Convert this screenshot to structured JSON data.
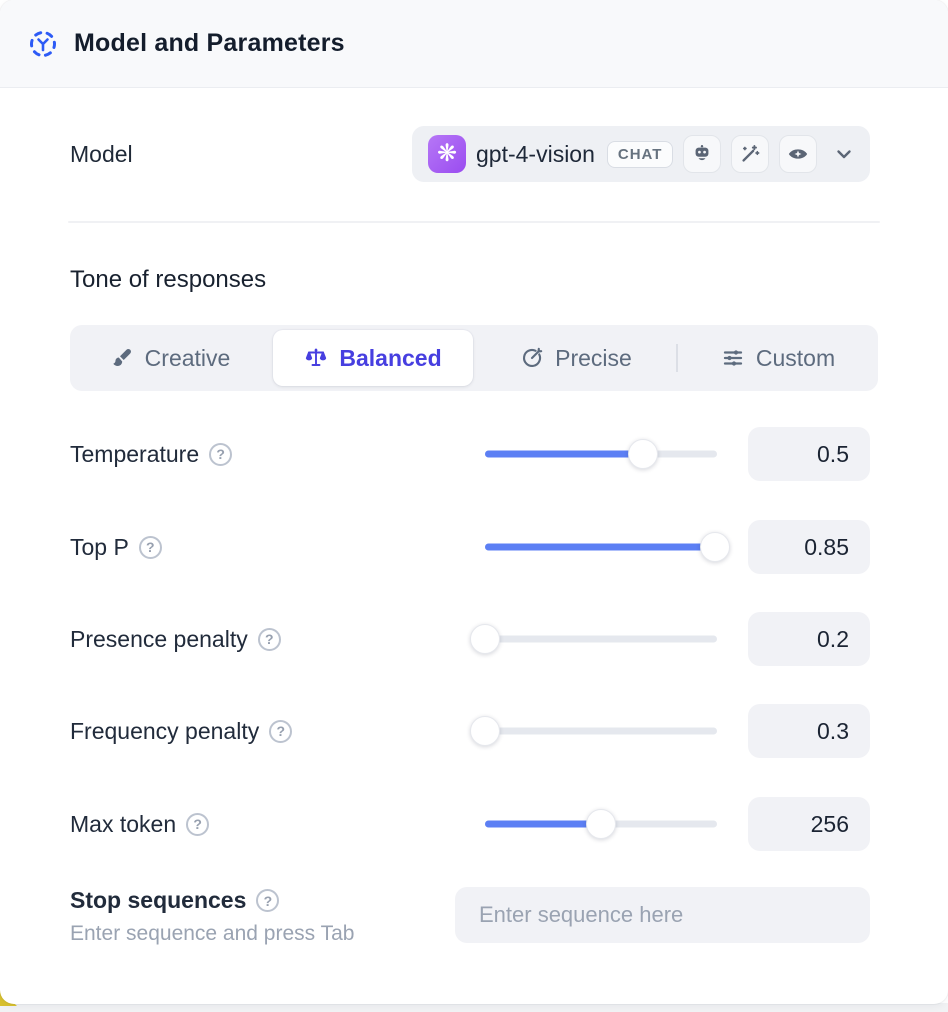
{
  "header": {
    "title": "Model and Parameters"
  },
  "model": {
    "label": "Model",
    "selected_model": "gpt-4-vision",
    "type_badge": "CHAT",
    "capability_icons": [
      "robot-icon",
      "magic-wand-icon",
      "vision-eye-icon"
    ]
  },
  "tone": {
    "heading": "Tone of responses",
    "options": [
      {
        "label": "Creative",
        "icon": "paintbrush-icon",
        "selected": false
      },
      {
        "label": "Balanced",
        "icon": "balance-scale-icon",
        "selected": true
      },
      {
        "label": "Precise",
        "icon": "target-icon",
        "selected": false
      },
      {
        "label": "Custom",
        "icon": "sliders-icon",
        "selected": false
      }
    ]
  },
  "parameters": [
    {
      "label": "Temperature",
      "value": "0.5",
      "fill_pct": 68
    },
    {
      "label": "Top P",
      "value": "0.85",
      "fill_pct": 99
    },
    {
      "label": "Presence penalty",
      "value": "0.2",
      "fill_pct": 0
    },
    {
      "label": "Frequency penalty",
      "value": "0.3",
      "fill_pct": 0
    },
    {
      "label": "Max token",
      "value": "256",
      "fill_pct": 50
    }
  ],
  "stop_sequences": {
    "label": "Stop sequences",
    "hint": "Enter sequence and press Tab",
    "placeholder": "Enter sequence here"
  },
  "ui": {
    "help_glyph": "?",
    "openai_glyph": "❋"
  },
  "colors": {
    "accent_blue": "#5c7ff4",
    "selected_indigo": "#473fe0",
    "header_icon_blue": "#2d5bf6",
    "model_logo_purple": "#9a4cf0",
    "backdrop_yellow": "#d9c12e"
  }
}
